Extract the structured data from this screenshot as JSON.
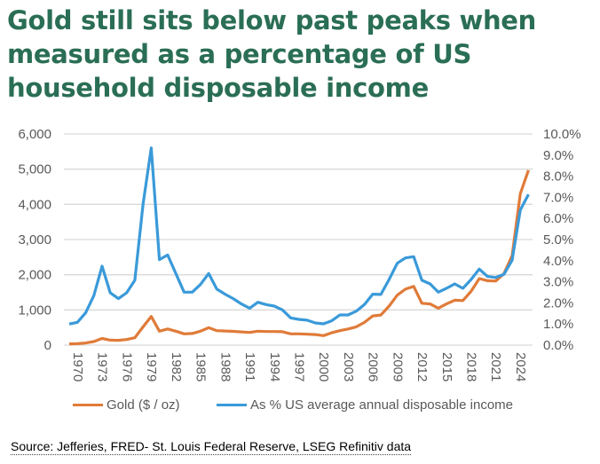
{
  "title": "Gold still sits below past peaks when measured as a percentage of US household disposable income",
  "source": "Source: Jefferies, FRED- St. Louis Federal Reserve, LSEG Refinitiv data",
  "chart_data": {
    "type": "line",
    "title": "Gold still sits below past peaks when measured as a percentage of US household disposable income",
    "x": [
      1970,
      1971,
      1972,
      1973,
      1974,
      1975,
      1976,
      1977,
      1978,
      1979,
      1980,
      1981,
      1982,
      1983,
      1984,
      1985,
      1986,
      1987,
      1988,
      1989,
      1990,
      1991,
      1992,
      1993,
      1994,
      1995,
      1996,
      1997,
      1998,
      1999,
      2000,
      2001,
      2002,
      2003,
      2004,
      2005,
      2006,
      2007,
      2008,
      2009,
      2010,
      2011,
      2012,
      2013,
      2014,
      2015,
      2016,
      2017,
      2018,
      2019,
      2020,
      2021,
      2022,
      2023,
      2024,
      2025,
      2026
    ],
    "x_tick_labels": [
      "1970",
      "1973",
      "1976",
      "1979",
      "1982",
      "1985",
      "1988",
      "1991",
      "1994",
      "1997",
      "2000",
      "2003",
      "2006",
      "2009",
      "2012",
      "2015",
      "2018",
      "2021",
      "2024"
    ],
    "y_left": {
      "label": "",
      "ylim": [
        0,
        6000
      ],
      "ticks": [
        "0",
        "1,000",
        "2,000",
        "3,000",
        "4,000",
        "5,000",
        "6,000"
      ]
    },
    "y_right": {
      "label": "",
      "ylim": [
        0,
        10
      ],
      "ticks": [
        "0.0%",
        "1.0%",
        "2.0%",
        "3.0%",
        "4.0%",
        "5.0%",
        "6.0%",
        "7.0%",
        "8.0%",
        "9.0%",
        "10.0%"
      ]
    },
    "grid": true,
    "legend_placement": "bottom",
    "series": [
      {
        "name": "Gold ($ / oz)",
        "axis": "left",
        "color": "#e07b39",
        "values": [
          36,
          40,
          60,
          100,
          190,
          142,
          137,
          160,
          210,
          520,
          815,
          395,
          460,
          395,
          320,
          330,
          395,
          495,
          410,
          400,
          390,
          375,
          360,
          395,
          385,
          385,
          380,
          320,
          320,
          310,
          300,
          270,
          350,
          410,
          460,
          520,
          645,
          830,
          855,
          1110,
          1420,
          1590,
          1670,
          1190,
          1170,
          1050,
          1170,
          1275,
          1265,
          1530,
          1890,
          1830,
          1820,
          2030,
          2540,
          4300,
          4970
        ]
      },
      {
        "name": "As % US average annual disposable income",
        "axis": "right",
        "color": "#3a9ad9",
        "values": [
          1.0,
          1.08,
          1.53,
          2.34,
          3.74,
          2.48,
          2.2,
          2.48,
          3.07,
          6.68,
          9.34,
          4.05,
          4.27,
          3.39,
          2.51,
          2.51,
          2.87,
          3.39,
          2.65,
          2.41,
          2.2,
          1.95,
          1.75,
          2.03,
          1.92,
          1.85,
          1.67,
          1.29,
          1.22,
          1.18,
          1.05,
          1.01,
          1.15,
          1.43,
          1.43,
          1.61,
          1.92,
          2.41,
          2.4,
          3.11,
          3.88,
          4.13,
          4.19,
          3.07,
          2.9,
          2.51,
          2.69,
          2.9,
          2.69,
          3.11,
          3.6,
          3.25,
          3.2,
          3.35,
          4.02,
          6.4,
          7.14
        ]
      }
    ]
  }
}
